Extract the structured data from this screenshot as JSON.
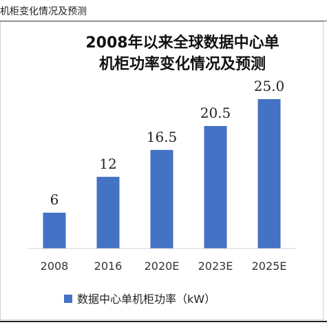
{
  "caption": "机柜变化情况及预测",
  "chart_data": {
    "type": "bar",
    "title": [
      "2008年以来全球数据中心单",
      "机柜功率变化情况及预测"
    ],
    "categories": [
      "2008",
      "2016",
      "2020E",
      "2023E",
      "2025E"
    ],
    "series": [
      {
        "name": "数据中心单机柜功率（kW）",
        "values": [
          6,
          12,
          16.5,
          20.5,
          25.0
        ],
        "labels": [
          "6",
          "12",
          "16.5",
          "20.5",
          "25.0"
        ]
      }
    ],
    "ylim": [
      0,
      25
    ],
    "grid": false,
    "legend_position": "bottom",
    "bar_color": "#4472C4"
  }
}
